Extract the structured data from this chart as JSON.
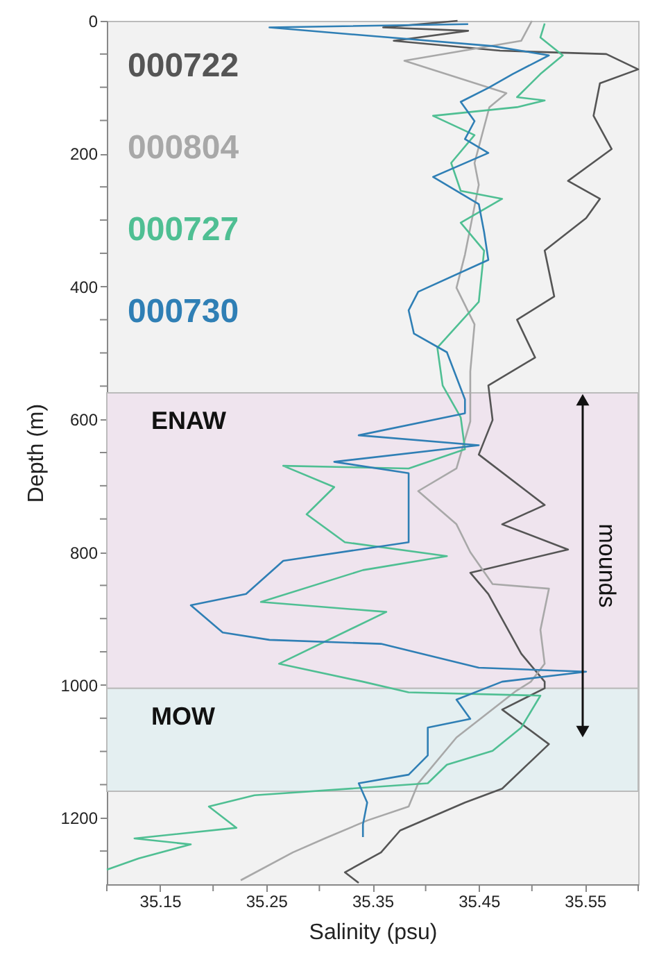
{
  "chart_data": {
    "type": "line",
    "xlabel": "Salinity (psu)",
    "ylabel": "Depth (m)",
    "xlim": [
      35.1,
      35.6
    ],
    "ylim": [
      1300,
      0
    ],
    "xticks": [
      {
        "value": 35.1,
        "label": null
      },
      35.15,
      {
        "value": 35.2,
        "label": null
      },
      35.25,
      {
        "value": 35.3,
        "label": null
      },
      35.35,
      {
        "value": 35.4,
        "label": null
      },
      35.45,
      {
        "value": 35.5,
        "label": null
      },
      35.55,
      {
        "value": 35.6,
        "label": null
      }
    ],
    "yticks": [
      0,
      {
        "value": 50,
        "label": null
      },
      {
        "value": 100,
        "label": null
      },
      {
        "value": 150,
        "label": null
      },
      200,
      {
        "value": 250,
        "label": null
      },
      {
        "value": 300,
        "label": null
      },
      {
        "value": 350,
        "label": null
      },
      400,
      {
        "value": 450,
        "label": null
      },
      {
        "value": 500,
        "label": null
      },
      {
        "value": 550,
        "label": null
      },
      600,
      {
        "value": 650,
        "label": null
      },
      {
        "value": 700,
        "label": null
      },
      {
        "value": 750,
        "label": null
      },
      800,
      {
        "value": 850,
        "label": null
      },
      {
        "value": 900,
        "label": null
      },
      {
        "value": 950,
        "label": null
      },
      1000,
      {
        "value": 1050,
        "label": null
      },
      {
        "value": 1100,
        "label": null
      },
      {
        "value": 1150,
        "label": null
      },
      1200,
      {
        "value": 1250,
        "label": null
      }
    ],
    "legend": "top left",
    "grid": false,
    "marker": "none",
    "line_style": "solid",
    "bands": [
      {
        "axis": "y",
        "from": 560,
        "to": 1005,
        "label": "ENAW",
        "color": "#efe4ee"
      },
      {
        "axis": "y",
        "from": 1005,
        "to": 1160,
        "label": "MOW",
        "color": "#e4eff1"
      }
    ],
    "annotations": [
      "mounds"
    ],
    "series": [
      {
        "name": "000722",
        "color": "#555555",
        "x": [
          35.43,
          35.36,
          35.44,
          35.37,
          35.47,
          35.57,
          35.6,
          35.564,
          35.558,
          35.575,
          35.534,
          35.564,
          35.551,
          35.512,
          35.521,
          35.486,
          35.503,
          35.459,
          35.463,
          35.45,
          35.512,
          35.472,
          35.534,
          35.442,
          35.459,
          35.49,
          35.512,
          35.512,
          35.472,
          35.516,
          35.472,
          35.437,
          35.376,
          35.358,
          35.324,
          35.337
        ],
        "values": [
          0,
          10,
          15,
          30,
          45,
          50,
          73,
          94,
          143,
          193,
          241,
          268,
          297,
          346,
          415,
          450,
          507,
          549,
          601,
          653,
          729,
          758,
          796,
          831,
          863,
          953,
          995,
          1005,
          1037,
          1089,
          1156,
          1177,
          1219,
          1252,
          1282,
          1298
        ]
      },
      {
        "name": "000804",
        "color": "#a8a8a8",
        "x": [
          35.5,
          35.49,
          35.38,
          35.476,
          35.46,
          35.446,
          35.45,
          35.437,
          35.429,
          35.446,
          35.442,
          35.442,
          35.429,
          35.393,
          35.429,
          35.442,
          35.463,
          35.516,
          35.508,
          35.512,
          35.499,
          35.485,
          35.429,
          35.393,
          35.384,
          35.345,
          35.305,
          35.275,
          35.226
        ],
        "values": [
          0,
          30,
          60,
          109,
          130,
          214,
          247,
          352,
          402,
          457,
          528,
          603,
          674,
          708,
          758,
          800,
          848,
          855,
          917,
          968,
          995,
          1009,
          1079,
          1148,
          1183,
          1204,
          1231,
          1252,
          1294
        ]
      },
      {
        "name": "000727",
        "color": "#4fbf93",
        "x": [
          35.512,
          35.508,
          35.529,
          35.508,
          35.486,
          35.512,
          35.486,
          35.407,
          35.446,
          35.424,
          35.433,
          35.472,
          35.433,
          35.455,
          35.45,
          35.411,
          35.416,
          35.433,
          35.437,
          35.384,
          35.266,
          35.314,
          35.288,
          35.324,
          35.42,
          35.341,
          35.245,
          35.363,
          35.262,
          35.341,
          35.384,
          35.508,
          35.49,
          35.463,
          35.42,
          35.402,
          35.239,
          35.196,
          35.222,
          35.126,
          35.179,
          35.13,
          35.1
        ],
        "values": [
          4,
          25,
          52,
          80,
          115,
          120,
          130,
          143,
          172,
          214,
          256,
          268,
          304,
          346,
          423,
          492,
          549,
          597,
          645,
          674,
          670,
          702,
          743,
          785,
          806,
          827,
          875,
          890,
          968,
          995,
          1011,
          1016,
          1064,
          1099,
          1120,
          1148,
          1166,
          1183,
          1215,
          1231,
          1240,
          1261,
          1278
        ]
      },
      {
        "name": "000730",
        "color": "#2f7fb5",
        "x": [
          35.44,
          35.253,
          35.463,
          35.516,
          35.482,
          35.459,
          35.433,
          35.446,
          35.437,
          35.459,
          35.407,
          35.45,
          35.455,
          35.459,
          35.393,
          35.384,
          35.389,
          35.42,
          35.437,
          35.437,
          35.337,
          35.45,
          35.314,
          35.384,
          35.384,
          35.266,
          35.231,
          35.179,
          35.209,
          35.253,
          35.358,
          35.45,
          35.551,
          35.472,
          35.429,
          35.442,
          35.402,
          35.402,
          35.384,
          35.337,
          35.345,
          35.341,
          35.341
        ],
        "values": [
          5,
          10,
          38,
          52,
          80,
          101,
          122,
          151,
          178,
          199,
          235,
          276,
          318,
          360,
          408,
          436,
          471,
          499,
          570,
          591,
          624,
          639,
          664,
          681,
          785,
          813,
          863,
          880,
          921,
          932,
          938,
          974,
          980,
          995,
          1022,
          1051,
          1064,
          1106,
          1135,
          1148,
          1177,
          1210,
          1229
        ]
      }
    ]
  }
}
